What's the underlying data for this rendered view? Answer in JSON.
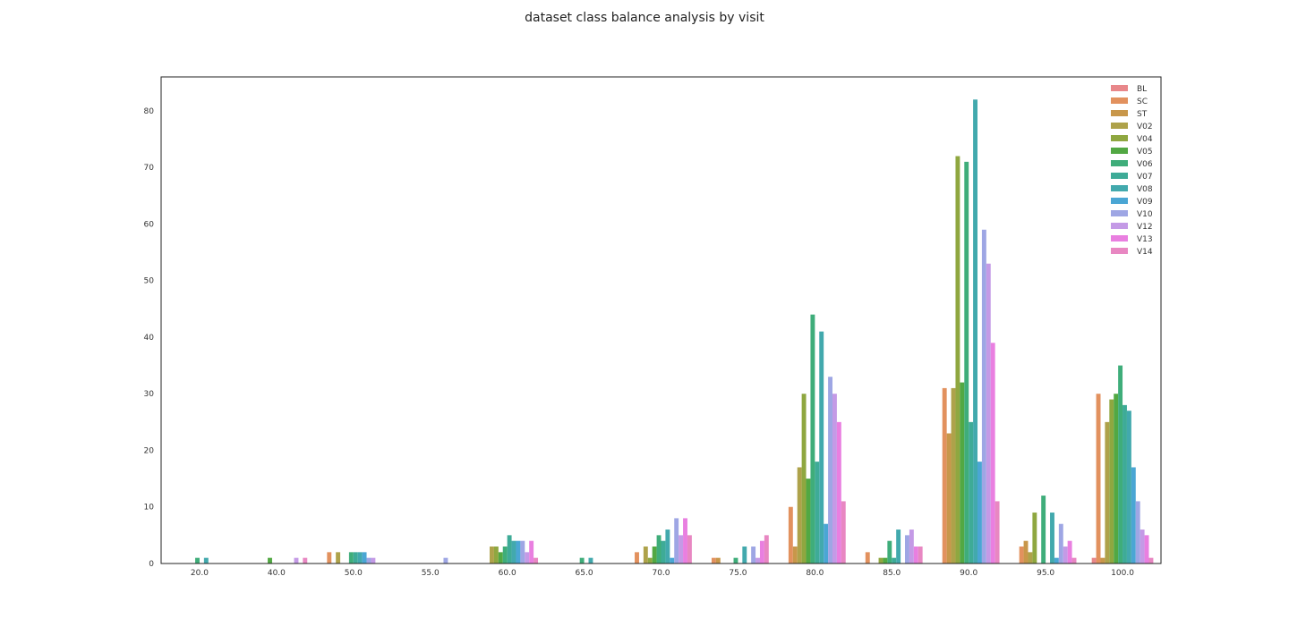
{
  "chart_data": {
    "type": "bar",
    "title": "dataset class balance analysis by visit",
    "xlabel": "",
    "ylabel": "",
    "ylim": [
      0,
      86
    ],
    "yticks": [
      0,
      10,
      20,
      30,
      40,
      50,
      60,
      70,
      80
    ],
    "legend_position": "top-right",
    "grid": false,
    "categories": [
      "20.0",
      "40.0",
      "50.0",
      "55.0",
      "60.0",
      "65.0",
      "70.0",
      "75.0",
      "80.0",
      "85.0",
      "90.0",
      "95.0",
      "100.0"
    ],
    "series": [
      {
        "name": "BL",
        "color": "#e8878a",
        "values": [
          0,
          0,
          0,
          0,
          0,
          0,
          0,
          0,
          0,
          0,
          0,
          0,
          1
        ]
      },
      {
        "name": "SC",
        "color": "#e2915e",
        "values": [
          0,
          0,
          2,
          0,
          0,
          0,
          2,
          1,
          10,
          2,
          31,
          3,
          30
        ]
      },
      {
        "name": "ST",
        "color": "#c8974a",
        "values": [
          0,
          0,
          0,
          0,
          0,
          0,
          0,
          1,
          3,
          0,
          23,
          4,
          1
        ]
      },
      {
        "name": "V02",
        "color": "#aea24a",
        "values": [
          0,
          0,
          2,
          0,
          3,
          0,
          3,
          0,
          17,
          0,
          31,
          2,
          25
        ]
      },
      {
        "name": "V04",
        "color": "#8fa740",
        "values": [
          0,
          0,
          0,
          0,
          3,
          0,
          1,
          0,
          30,
          1,
          72,
          9,
          29
        ]
      },
      {
        "name": "V05",
        "color": "#52a843",
        "values": [
          0,
          1,
          0,
          0,
          2,
          0,
          3,
          0,
          15,
          1,
          32,
          0,
          30
        ]
      },
      {
        "name": "V06",
        "color": "#3fad7a",
        "values": [
          1,
          0,
          2,
          0,
          3,
          1,
          5,
          1,
          44,
          4,
          71,
          12,
          35
        ]
      },
      {
        "name": "V07",
        "color": "#3eab97",
        "values": [
          0,
          0,
          2,
          0,
          5,
          0,
          4,
          0,
          18,
          1,
          25,
          0,
          28
        ]
      },
      {
        "name": "V08",
        "color": "#42a9ad",
        "values": [
          1,
          0,
          2,
          0,
          4,
          1,
          6,
          3,
          41,
          6,
          82,
          9,
          27
        ]
      },
      {
        "name": "V09",
        "color": "#4aa6d4",
        "values": [
          0,
          0,
          2,
          0,
          4,
          0,
          1,
          0,
          7,
          0,
          18,
          1,
          17
        ]
      },
      {
        "name": "V10",
        "color": "#9ea6e4",
        "values": [
          0,
          0,
          1,
          1,
          4,
          0,
          8,
          3,
          33,
          5,
          59,
          7,
          11
        ]
      },
      {
        "name": "V12",
        "color": "#c49ae6",
        "values": [
          0,
          1,
          1,
          0,
          2,
          0,
          5,
          1,
          30,
          6,
          53,
          3,
          6
        ]
      },
      {
        "name": "V13",
        "color": "#e97fe0",
        "values": [
          0,
          0,
          0,
          0,
          4,
          0,
          8,
          4,
          25,
          3,
          39,
          4,
          5
        ]
      },
      {
        "name": "V14",
        "color": "#e887c2",
        "values": [
          0,
          1,
          0,
          0,
          1,
          0,
          5,
          5,
          11,
          3,
          11,
          1,
          1
        ]
      }
    ]
  }
}
